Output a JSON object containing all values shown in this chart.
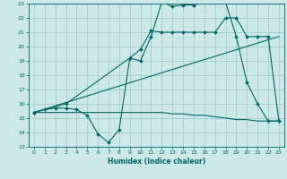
{
  "xlabel": "Humidex (Indice chaleur)",
  "xlim": [
    -0.5,
    23.5
  ],
  "ylim": [
    13,
    23
  ],
  "xticks": [
    0,
    1,
    2,
    3,
    4,
    5,
    6,
    7,
    8,
    9,
    10,
    11,
    12,
    13,
    14,
    15,
    16,
    17,
    18,
    19,
    20,
    21,
    22,
    23
  ],
  "yticks": [
    13,
    14,
    15,
    16,
    17,
    18,
    19,
    20,
    21,
    22,
    23
  ],
  "bg_color": "#cce8e8",
  "grid_color": "#9dc8c8",
  "line_color": "#006666",
  "line1_x": [
    0,
    1,
    2,
    3,
    4,
    5,
    6,
    7,
    8,
    9,
    10,
    11,
    12,
    13,
    14,
    15,
    16,
    17,
    18,
    19,
    20,
    21,
    22,
    23
  ],
  "line1_y": [
    15.4,
    15.6,
    15.7,
    15.7,
    15.6,
    15.2,
    13.9,
    13.3,
    14.2,
    19.2,
    19.0,
    20.7,
    23.1,
    22.8,
    22.9,
    22.9,
    23.1,
    23.1,
    23.1,
    20.7,
    17.5,
    16.0,
    14.8,
    14.8
  ],
  "line2_x": [
    0,
    3,
    9,
    10,
    11,
    12,
    13,
    14,
    15,
    16,
    17,
    18,
    19,
    20,
    21,
    22,
    23
  ],
  "line2_y": [
    15.4,
    16.0,
    19.2,
    19.8,
    21.1,
    21.0,
    21.0,
    21.0,
    21.0,
    21.0,
    21.0,
    22.0,
    22.0,
    20.7,
    20.7,
    20.7,
    14.8
  ],
  "line3_x": [
    0,
    23
  ],
  "line3_y": [
    15.4,
    20.7
  ],
  "line4_x": [
    0,
    10,
    11,
    12,
    13,
    14,
    15,
    16,
    17,
    18,
    19,
    20,
    21,
    22,
    23
  ],
  "line4_y": [
    15.4,
    15.4,
    15.4,
    15.4,
    15.3,
    15.3,
    15.2,
    15.2,
    15.1,
    15.0,
    14.9,
    14.9,
    14.8,
    14.8,
    14.8
  ]
}
